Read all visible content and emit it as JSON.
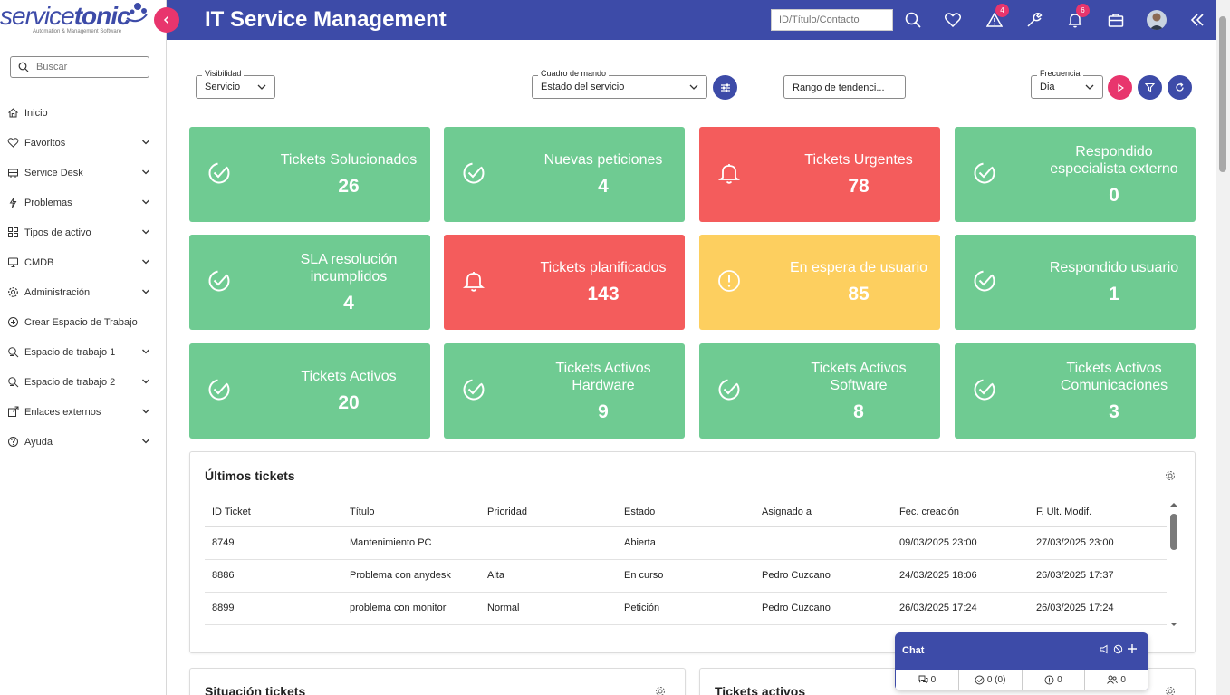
{
  "app": {
    "brand_light": "service",
    "brand_bold": "tonic",
    "tagline": "Automation & Management Software",
    "title": "IT Service Management"
  },
  "header": {
    "search_placeholder": "ID/Título/Contacto",
    "alerts_badge": "4",
    "notifications_badge": "6"
  },
  "sidebar": {
    "search_placeholder": "Buscar",
    "items": [
      {
        "label": "Inicio",
        "icon": "home-icon",
        "expandable": false
      },
      {
        "label": "Favoritos",
        "icon": "heart-icon",
        "expandable": true
      },
      {
        "label": "Service Desk",
        "icon": "service-desk-icon",
        "expandable": true
      },
      {
        "label": "Problemas",
        "icon": "bolt-icon",
        "expandable": true
      },
      {
        "label": "Tipos de activo",
        "icon": "grid-icon",
        "expandable": true
      },
      {
        "label": "CMDB",
        "icon": "monitor-icon",
        "expandable": true
      },
      {
        "label": "Administración",
        "icon": "gear-icon",
        "expandable": true
      },
      {
        "label": "Crear Espacio de Trabajo",
        "icon": "plus-circle-icon",
        "expandable": false
      },
      {
        "label": "Espacio de trabajo 1",
        "icon": "workspace-icon",
        "expandable": true
      },
      {
        "label": "Espacio de trabajo 2",
        "icon": "workspace-icon",
        "expandable": true
      },
      {
        "label": "Enlaces externos",
        "icon": "external-link-icon",
        "expandable": true
      },
      {
        "label": "Ayuda",
        "icon": "help-icon",
        "expandable": true
      }
    ]
  },
  "filters": {
    "visibility_label": "Visibilidad",
    "visibility_value": "Servicio",
    "dashboard_label": "Cuadro de mando",
    "dashboard_value": "Estado del servicio",
    "trend_range_placeholder": "Rango de tendenci...",
    "frequency_label": "Frecuencia",
    "frequency_value": "Dia"
  },
  "tiles": [
    {
      "label": "Tickets Solucionados",
      "value": "26",
      "status": "green",
      "icon": "check-circle-icon"
    },
    {
      "label": "Nuevas peticiones",
      "value": "4",
      "status": "green",
      "icon": "check-circle-icon"
    },
    {
      "label": "Tickets Urgentes",
      "value": "78",
      "status": "red",
      "icon": "bell-icon"
    },
    {
      "label": "Respondido especialista externo",
      "value": "0",
      "status": "green",
      "icon": "check-circle-icon"
    },
    {
      "label": "SLA resolución incumplidos",
      "value": "4",
      "status": "green",
      "icon": "check-circle-icon"
    },
    {
      "label": "Tickets planificados",
      "value": "143",
      "status": "red",
      "icon": "bell-icon"
    },
    {
      "label": "En espera de usuario",
      "value": "85",
      "status": "yellow",
      "icon": "warning-circle-icon"
    },
    {
      "label": "Respondido usuario",
      "value": "1",
      "status": "green",
      "icon": "check-circle-icon"
    },
    {
      "label": "Tickets Activos",
      "value": "20",
      "status": "green",
      "icon": "check-circle-icon"
    },
    {
      "label": "Tickets Activos Hardware",
      "value": "9",
      "status": "green",
      "icon": "check-circle-icon"
    },
    {
      "label": "Tickets Activos Software",
      "value": "8",
      "status": "green",
      "icon": "check-circle-icon"
    },
    {
      "label": "Tickets Activos Comunicaciones",
      "value": "3",
      "status": "green",
      "icon": "check-circle-icon"
    }
  ],
  "latest_tickets": {
    "title": "Últimos tickets",
    "columns": [
      "ID Ticket",
      "Título",
      "Prioridad",
      "Estado",
      "Asignado a",
      "Fec. creación",
      "F. Ult. Modif."
    ],
    "rows": [
      [
        "8749",
        "Mantenimiento PC",
        "",
        "Abierta",
        "",
        "09/03/2025 23:00",
        "27/03/2025 23:00"
      ],
      [
        "8886",
        "Problema con anydesk",
        "Alta",
        "En curso",
        "Pedro Cuzcano",
        "24/03/2025 18:06",
        "26/03/2025 17:37"
      ],
      [
        "8899",
        "problema con monitor",
        "Normal",
        "Petición",
        "Pedro Cuzcano",
        "26/03/2025 17:24",
        "26/03/2025 17:24"
      ]
    ]
  },
  "bottom_panels": {
    "left_title": "Situación tickets",
    "right_title": "Tickets activos"
  },
  "chat": {
    "title": "Chat",
    "stats": [
      "0",
      "0 (0)",
      "0",
      "0"
    ]
  },
  "colors": {
    "primary": "#3d4ba8",
    "accent": "#e8356d",
    "green": "#6fcb92",
    "red": "#f45c5c",
    "yellow": "#fdcf5f"
  }
}
